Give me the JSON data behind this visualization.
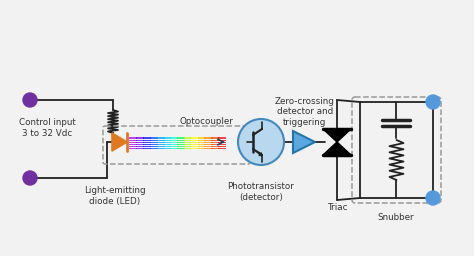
{
  "bg_color": "#f2f2f2",
  "wire_color": "#222222",
  "purple_dot_color": "#7030a0",
  "led_color": "#e07820",
  "optocoupler_box_color": "#999999",
  "phototransistor_circle_color": "#b8d8f0",
  "phototransistor_circle_edge": "#4488bb",
  "arrow_block_color": "#5ba8e0",
  "arrow_block_edge": "#2277aa",
  "triac_color": "#111111",
  "snubber_box_color": "#999999",
  "terminal_dot_color": "#5599dd",
  "text_color": "#333333",
  "labels": {
    "control_input": "Control input\n3 to 32 Vdc",
    "led_label": "Light-emitting\ndiode (LED)",
    "optocoupler": "Optocoupler",
    "phototransistor": "Phototransistor\n(detector)",
    "zero_crossing": "Zero-crossing\ndetector and\ntriggering",
    "triac": "Triac",
    "snubber": "Snubber"
  },
  "rainbow_colors": [
    "#aa00ff",
    "#6600ff",
    "#0000ff",
    "#0044ff",
    "#0099ff",
    "#00ccff",
    "#00ffcc",
    "#00ff44",
    "#aaff00",
    "#ffff00",
    "#ffcc00",
    "#ff8800",
    "#ff4400",
    "#ff0000"
  ],
  "fig_width": 4.74,
  "fig_height": 2.56,
  "dpi": 100
}
